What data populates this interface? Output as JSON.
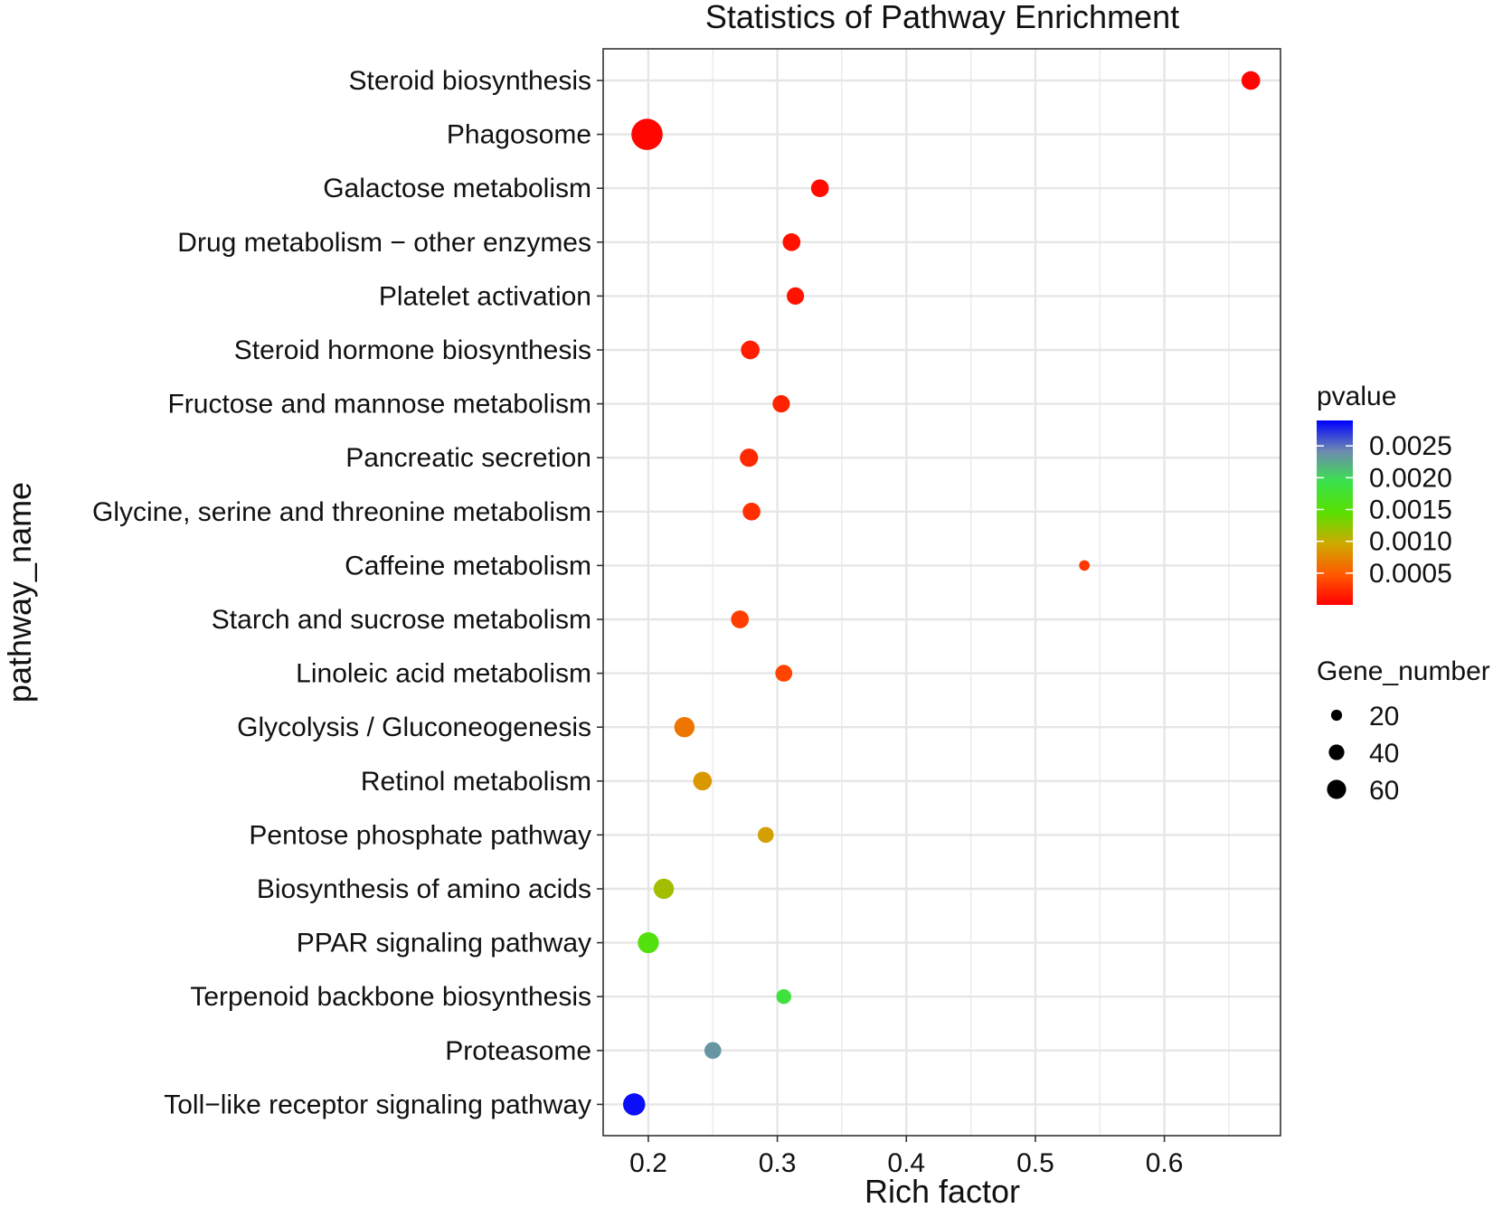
{
  "chart_data": {
    "type": "scatter",
    "title": "Statistics of Pathway Enrichment",
    "xlabel": "Rich factor",
    "ylabel": "pathway_name",
    "xlim": [
      0.165,
      0.69
    ],
    "x_ticks": [
      0.2,
      0.3,
      0.4,
      0.5,
      0.6
    ],
    "x_tick_labels": [
      "0.2",
      "0.3",
      "0.4",
      "0.5",
      "0.6"
    ],
    "grid": true,
    "legend_position": "right",
    "points": [
      {
        "pathway": "Steroid biosynthesis",
        "rich_factor": 0.667,
        "pvalue": 2e-05,
        "gene_number": 22
      },
      {
        "pathway": "Phagosome",
        "rich_factor": 0.199,
        "pvalue": 3e-05,
        "gene_number": 62
      },
      {
        "pathway": "Galactose metabolism",
        "rich_factor": 0.333,
        "pvalue": 6e-05,
        "gene_number": 20
      },
      {
        "pathway": "Drug metabolism − other enzymes",
        "rich_factor": 0.311,
        "pvalue": 9e-05,
        "gene_number": 20
      },
      {
        "pathway": "Platelet activation",
        "rich_factor": 0.314,
        "pvalue": 0.0001,
        "gene_number": 19
      },
      {
        "pathway": "Steroid hormone biosynthesis",
        "rich_factor": 0.279,
        "pvalue": 0.00015,
        "gene_number": 22
      },
      {
        "pathway": "Fructose and mannose metabolism",
        "rich_factor": 0.303,
        "pvalue": 0.00018,
        "gene_number": 19
      },
      {
        "pathway": "Pancreatic secretion",
        "rich_factor": 0.278,
        "pvalue": 0.00022,
        "gene_number": 21
      },
      {
        "pathway": "Glycine, serine and threonine metabolism",
        "rich_factor": 0.28,
        "pvalue": 0.00026,
        "gene_number": 20
      },
      {
        "pathway": "Caffeine metabolism",
        "rich_factor": 0.538,
        "pvalue": 0.0003,
        "gene_number": 7
      },
      {
        "pathway": "Starch and sucrose metabolism",
        "rich_factor": 0.271,
        "pvalue": 0.00033,
        "gene_number": 20
      },
      {
        "pathway": "Linoleic acid metabolism",
        "rich_factor": 0.305,
        "pvalue": 0.00036,
        "gene_number": 18
      },
      {
        "pathway": "Glycolysis / Gluconeogenesis",
        "rich_factor": 0.228,
        "pvalue": 0.00065,
        "gene_number": 26
      },
      {
        "pathway": "Retinol metabolism",
        "rich_factor": 0.242,
        "pvalue": 0.00085,
        "gene_number": 22
      },
      {
        "pathway": "Pentose phosphate pathway",
        "rich_factor": 0.291,
        "pvalue": 0.0009,
        "gene_number": 16
      },
      {
        "pathway": "Biosynthesis of amino acids",
        "rich_factor": 0.212,
        "pvalue": 0.00115,
        "gene_number": 26
      },
      {
        "pathway": "PPAR signaling pathway",
        "rich_factor": 0.2,
        "pvalue": 0.00155,
        "gene_number": 28
      },
      {
        "pathway": "Terpenoid backbone biosynthesis",
        "rich_factor": 0.305,
        "pvalue": 0.00185,
        "gene_number": 14
      },
      {
        "pathway": "Proteasome",
        "rich_factor": 0.25,
        "pvalue": 0.00235,
        "gene_number": 18
      },
      {
        "pathway": "Toll−like receptor signaling pathway",
        "rich_factor": 0.189,
        "pvalue": 0.00285,
        "gene_number": 31
      }
    ],
    "color_legend": {
      "title": "pvalue",
      "range": [
        0.0,
        0.0029
      ],
      "ticks": [
        0.0025,
        0.002,
        0.0015,
        0.001,
        0.0005
      ],
      "tick_labels": [
        "0.0025",
        "0.0020",
        "0.0015",
        "0.0010",
        "0.0005"
      ],
      "colors": [
        "#ff0000",
        "#ff5a00",
        "#cdaa00",
        "#59e000",
        "#3ae24a",
        "#6e8ab0",
        "#0000ff"
      ]
    },
    "size_legend": {
      "title": "Gene_number",
      "values": [
        20,
        40,
        60
      ],
      "labels": [
        "20",
        "40",
        "60"
      ]
    }
  },
  "colors": {
    "grid": "#e6e6e6",
    "panel_border": "#333333",
    "text": "#111111"
  }
}
